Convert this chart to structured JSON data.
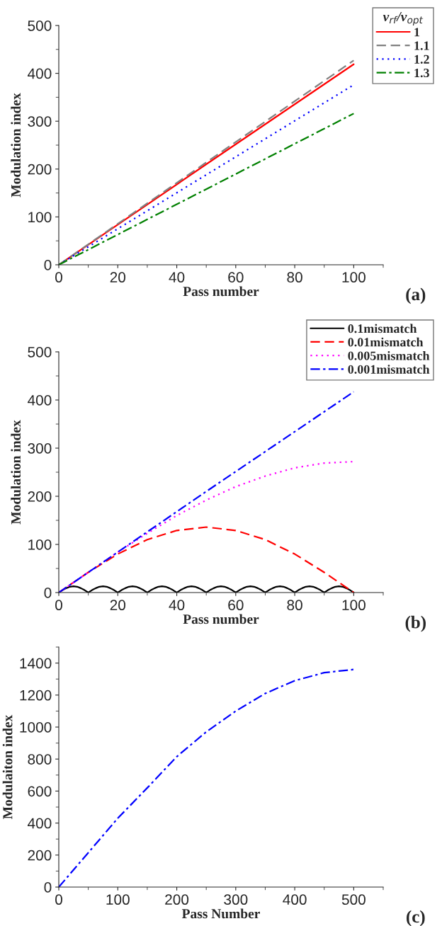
{
  "chart_data": [
    {
      "type": "line",
      "xlabel": "Pass number",
      "ylabel": "Modulation index",
      "legend_title": "v$_{rf}$/v$_{opt}$",
      "legend": "top right",
      "xlim": [
        0,
        110
      ],
      "ylim": [
        0,
        500
      ],
      "xticks": [
        0,
        20,
        40,
        60,
        80,
        100
      ],
      "yticks": [
        0,
        100,
        200,
        300,
        400,
        500
      ],
      "grid": false,
      "annotations": [
        "(a)"
      ],
      "series": [
        {
          "name": "1",
          "color": "#ff0000",
          "line_style": "solid",
          "x": [
            0,
            50,
            100
          ],
          "values": [
            0,
            210,
            419
          ]
        },
        {
          "name": "1.1",
          "color": "#808080",
          "line_style": "dashed",
          "x": [
            0,
            50,
            100
          ],
          "values": [
            0,
            214,
            427
          ]
        },
        {
          "name": "1.2",
          "color": "#0000ff",
          "line_style": "dotted",
          "x": [
            0,
            50,
            100
          ],
          "values": [
            0,
            188,
            376
          ]
        },
        {
          "name": "1.3",
          "color": "#008000",
          "line_style": "dashdot",
          "x": [
            0,
            50,
            100
          ],
          "values": [
            0,
            158,
            316
          ]
        }
      ]
    },
    {
      "type": "line",
      "xlabel": "Pass number",
      "ylabel": "Modulation index",
      "legend": "top right",
      "xlim": [
        0,
        110
      ],
      "ylim": [
        0,
        500
      ],
      "xticks": [
        0,
        20,
        40,
        60,
        80,
        100
      ],
      "yticks": [
        0,
        100,
        200,
        300,
        400,
        500
      ],
      "grid": false,
      "annotations": [
        "(b)"
      ],
      "series": [
        {
          "name": "0.1mismatch",
          "color": "#000000",
          "line_style": "solid",
          "x": [
            0,
            1.25,
            2.5,
            3.75,
            5,
            6.25,
            7.5,
            8.75,
            10,
            11.25,
            12.5,
            13.75,
            15,
            16.25,
            17.5,
            18.75,
            20,
            21.25,
            22.5,
            23.75,
            25,
            26.25,
            27.5,
            28.75,
            30,
            31.25,
            32.5,
            33.75,
            35,
            36.25,
            37.5,
            38.75,
            40,
            41.25,
            42.5,
            43.75,
            45,
            46.25,
            47.5,
            48.75,
            50,
            51.25,
            52.5,
            53.75,
            55,
            56.25,
            57.5,
            58.75,
            60,
            61.25,
            62.5,
            63.75,
            65,
            66.25,
            67.5,
            68.75,
            70,
            71.25,
            72.5,
            73.75,
            75,
            76.25,
            77.5,
            78.75,
            80,
            81.25,
            82.5,
            83.75,
            85,
            86.25,
            87.5,
            88.75,
            90,
            91.25,
            92.5,
            93.75,
            95,
            96.25,
            97.5,
            98.75,
            100
          ],
          "values": [
            0,
            5,
            9,
            12,
            13,
            12,
            9,
            5,
            0,
            5,
            9,
            12,
            13,
            12,
            9,
            5,
            0,
            5,
            9,
            12,
            13,
            12,
            9,
            5,
            0,
            5,
            9,
            12,
            13,
            12,
            9,
            5,
            0,
            5,
            9,
            12,
            13,
            12,
            9,
            5,
            0,
            5,
            9,
            12,
            13,
            12,
            9,
            5,
            0,
            5,
            9,
            12,
            13,
            12,
            9,
            5,
            0,
            5,
            9,
            12,
            13,
            12,
            9,
            5,
            0,
            5,
            9,
            12,
            13,
            12,
            9,
            5,
            0,
            5,
            9,
            12,
            13,
            12,
            9,
            5,
            0
          ]
        },
        {
          "name": "0.01mismatch",
          "color": "#ff0000",
          "line_style": "dashed",
          "x": [
            0,
            10,
            20,
            30,
            40,
            50,
            60,
            70,
            80,
            90,
            100
          ],
          "values": [
            0,
            42,
            80,
            110,
            129,
            136,
            129,
            110,
            80,
            42,
            0
          ]
        },
        {
          "name": "0.005mismatch",
          "color": "#ff00ff",
          "line_style": "dotted",
          "x": [
            0,
            10,
            20,
            30,
            40,
            50,
            60,
            70,
            80,
            90,
            100
          ],
          "values": [
            0,
            42,
            84,
            123,
            160,
            192,
            220,
            242,
            259,
            269,
            272
          ]
        },
        {
          "name": "0.001mismatch",
          "color": "#0000ff",
          "line_style": "dashdot",
          "x": [
            0,
            50,
            100
          ],
          "values": [
            0,
            210,
            417
          ]
        }
      ]
    },
    {
      "type": "line",
      "xlabel": "Pass Number",
      "ylabel": "Modulaiton index",
      "xlim": [
        0,
        550
      ],
      "ylim": [
        0,
        1500
      ],
      "xticks": [
        0,
        100,
        200,
        300,
        400,
        500
      ],
      "yticks": [
        0,
        200,
        400,
        600,
        800,
        1000,
        1200,
        1400
      ],
      "grid": false,
      "annotations": [
        "(c)"
      ],
      "series": [
        {
          "color": "#0000ff",
          "line_style": "dashdot",
          "x": [
            0,
            50,
            100,
            150,
            200,
            250,
            300,
            350,
            400,
            450,
            500
          ],
          "values": [
            0,
            215,
            430,
            620,
            815,
            970,
            1100,
            1210,
            1290,
            1340,
            1360
          ]
        }
      ]
    }
  ]
}
